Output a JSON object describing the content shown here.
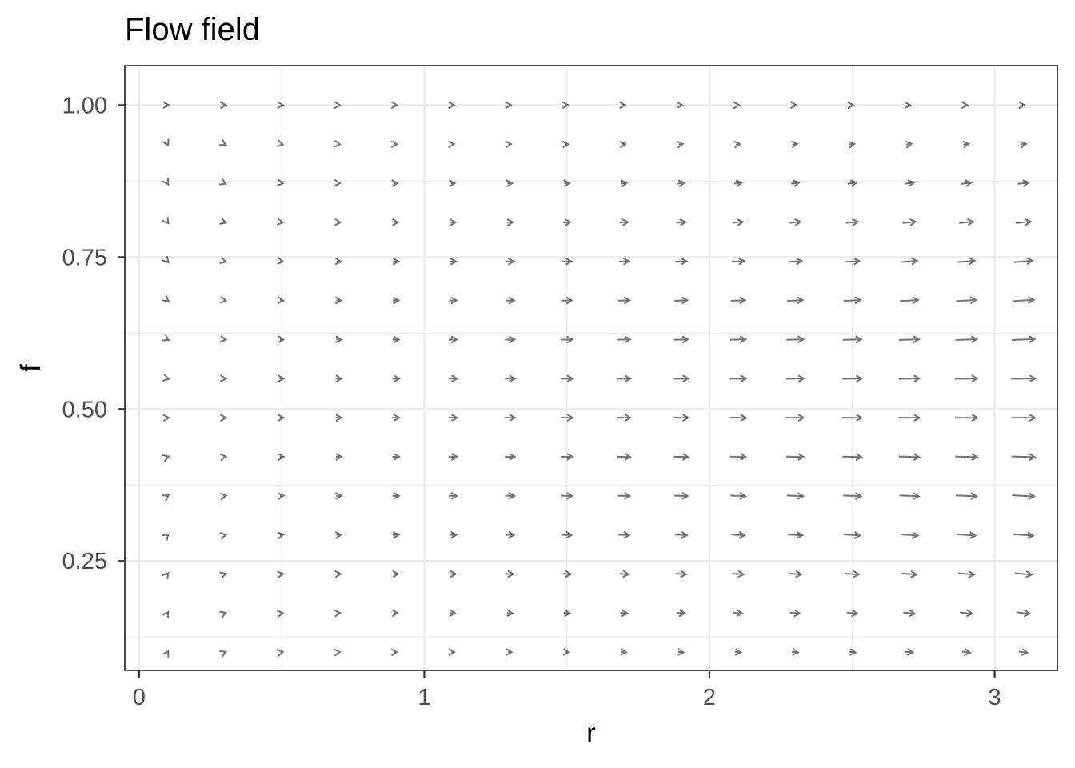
{
  "chart_data": {
    "type": "vector_field",
    "title": "Flow field",
    "xlabel": "r",
    "ylabel": "f",
    "xlim": [
      -0.05,
      3.22
    ],
    "ylim": [
      0.07,
      1.065
    ],
    "x_ticks": [
      0,
      1,
      2,
      3
    ],
    "x_tick_labels": [
      "0",
      "1",
      "2",
      "3"
    ],
    "y_ticks": [
      0.25,
      0.5,
      0.75,
      1.0
    ],
    "y_tick_labels": [
      "0.25",
      "0.50",
      "0.75",
      "1.00"
    ],
    "x_minor_gridlines": [
      0.5,
      1.5,
      2.5
    ],
    "y_minor_gridlines": [
      0.125,
      0.375,
      0.625,
      0.875
    ],
    "grid": true,
    "arrow_color": "#000000",
    "field": {
      "dr": "r * f * (1 - f)",
      "df": "f * (1 - f) * (f - 0.5) * (r - 1) / 2"
    },
    "grid_points": {
      "r": [
        0.1,
        0.3,
        0.5,
        0.7,
        0.9,
        1.1,
        1.3,
        1.5,
        1.7,
        1.9,
        2.1,
        2.3,
        2.5,
        2.7,
        2.9,
        3.1
      ],
      "f": [
        0.1,
        0.1642857,
        0.2285714,
        0.2928571,
        0.3571429,
        0.4214286,
        0.4857143,
        0.55,
        0.6142857,
        0.6785714,
        0.7428571,
        0.8071429,
        0.8714286,
        0.9357143,
        1.0
      ]
    }
  }
}
